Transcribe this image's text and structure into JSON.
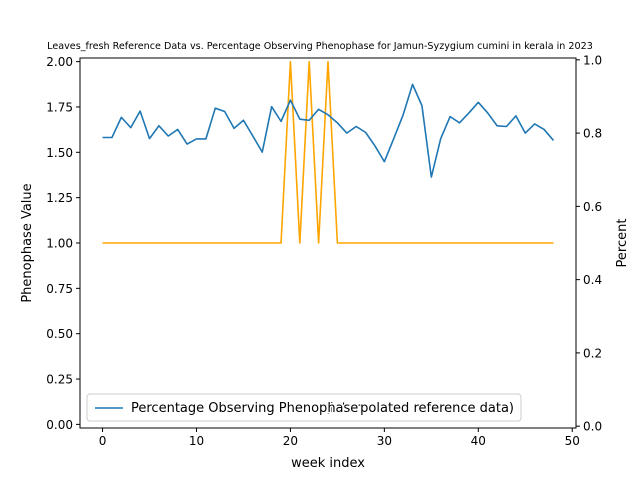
{
  "chart_data": {
    "type": "line",
    "title": "Leaves_fresh Reference Data vs. Percentage Observing Phenophase for Jamun-Syzygium cumini in kerala in 2023",
    "xlabel": "week index",
    "ylabel_left": "Phenophase Value",
    "ylabel_right": "Percent",
    "xlim": [
      -2.4,
      50.4
    ],
    "ylim_left": [
      -0.02,
      2.02
    ],
    "ylim_right": [
      -0.005,
      1.005
    ],
    "xticks": [
      "0",
      "10",
      "20",
      "30",
      "40",
      "50"
    ],
    "yticks_left": [
      "0.00",
      "0.25",
      "0.50",
      "0.75",
      "1.00",
      "1.25",
      "1.50",
      "1.75",
      "2.00"
    ],
    "yticks_right": [
      "0.0",
      "0.2",
      "0.4",
      "0.6",
      "0.8",
      "1.0"
    ],
    "legend": {
      "placement": "lower-left",
      "entry_blue": "Percentage Observing Phenophase",
      "entry_hidden": "(interpolated reference data)"
    },
    "series": [
      {
        "axis": "left",
        "color": "#ffa500",
        "x": [
          0,
          1,
          2,
          3,
          4,
          5,
          6,
          7,
          8,
          9,
          10,
          11,
          12,
          13,
          14,
          15,
          16,
          17,
          18,
          19,
          20,
          21,
          22,
          23,
          24,
          25,
          26,
          27,
          28,
          29,
          30,
          31,
          32,
          33,
          34,
          35,
          36,
          37,
          38,
          39,
          40,
          41,
          42,
          43,
          44,
          45,
          46,
          47,
          48
        ],
        "values": [
          1,
          1,
          1,
          1,
          1,
          1,
          1,
          1,
          1,
          1,
          1,
          1,
          1,
          1,
          1,
          1,
          1,
          1,
          1,
          1,
          2,
          1,
          2,
          1,
          2,
          1,
          1,
          1,
          1,
          1,
          1,
          1,
          1,
          1,
          1,
          1,
          1,
          1,
          1,
          1,
          1,
          1,
          1,
          1,
          1,
          1,
          1,
          1,
          1
        ]
      },
      {
        "name": "Percentage Observing Phenophase",
        "axis": "right",
        "color": "#1f77b4",
        "x": [
          0,
          1,
          2,
          3,
          4,
          5,
          6,
          7,
          8,
          9,
          10,
          11,
          12,
          13,
          14,
          15,
          16,
          17,
          18,
          19,
          20,
          21,
          22,
          23,
          24,
          25,
          26,
          27,
          28,
          29,
          30,
          31,
          32,
          33,
          34,
          35,
          36,
          37,
          38,
          39,
          40,
          41,
          42,
          43,
          44,
          45,
          46,
          47,
          48
        ],
        "values": [
          0.788,
          0.788,
          0.843,
          0.815,
          0.86,
          0.785,
          0.82,
          0.792,
          0.81,
          0.77,
          0.784,
          0.784,
          0.868,
          0.859,
          0.813,
          0.835,
          0.792,
          0.748,
          0.872,
          0.832,
          0.89,
          0.838,
          0.835,
          0.865,
          0.85,
          0.828,
          0.8,
          0.818,
          0.802,
          0.765,
          0.722,
          0.785,
          0.85,
          0.933,
          0.875,
          0.68,
          0.785,
          0.845,
          0.828,
          0.855,
          0.884,
          0.855,
          0.82,
          0.818,
          0.847,
          0.8,
          0.825,
          0.81,
          0.78
        ]
      }
    ]
  }
}
